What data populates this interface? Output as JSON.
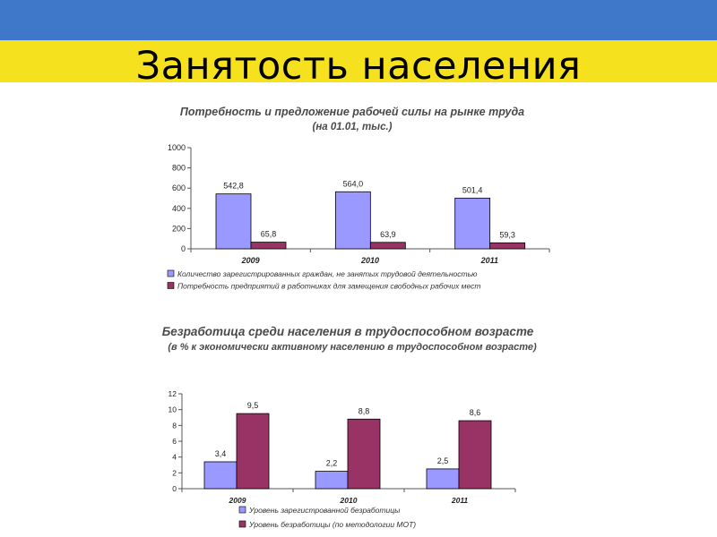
{
  "slide": {
    "title": "Занятость населения",
    "colors": {
      "flag_top": "#3f78c8",
      "flag_bottom": "#f5e11d"
    }
  },
  "chart_data": [
    {
      "type": "bar",
      "title": "Потребность и предложение рабочей силы на рынке труда",
      "subtitle": "(на 01.01, тыс.)",
      "categories": [
        "2009",
        "2010",
        "2011"
      ],
      "series": [
        {
          "name": "Количество зарегистрированных граждан, не занятых трудовой деятельностью",
          "values": [
            542.8,
            564.0,
            501.4
          ],
          "labels": [
            "542,8",
            "564,0",
            "501,4"
          ],
          "color": "#9999ff"
        },
        {
          "name": "Потребность предприятий в работниках для замещения свободных рабочих мест",
          "values": [
            65.8,
            63.9,
            59.3
          ],
          "labels": [
            "65,8",
            "63,9",
            "59,3"
          ],
          "color": "#993366"
        }
      ],
      "ylim": [
        0,
        1000
      ],
      "yticks": [
        0,
        200,
        400,
        600,
        800,
        1000
      ],
      "legend": "bottom",
      "grid": false
    },
    {
      "type": "bar",
      "title": "Безработица среди населения в трудоспособном возрасте",
      "subtitle": "(в % к экономически активному населению в трудоспособном возрасте)",
      "categories": [
        "2009",
        "2010",
        "2011"
      ],
      "series": [
        {
          "name": "Уровень зарегистрованной безработицы",
          "values": [
            3.4,
            2.2,
            2.5
          ],
          "labels": [
            "3,4",
            "2,2",
            "2,5"
          ],
          "color": "#9999ff"
        },
        {
          "name": "Уровень безработицы (по методологии МОТ)",
          "values": [
            9.5,
            8.8,
            8.6
          ],
          "labels": [
            "9,5",
            "8,8",
            "8,6"
          ],
          "color": "#993366"
        }
      ],
      "ylim": [
        0,
        12
      ],
      "yticks": [
        0,
        2,
        4,
        6,
        8,
        10,
        12
      ],
      "legend": "bottom",
      "grid": false
    }
  ]
}
